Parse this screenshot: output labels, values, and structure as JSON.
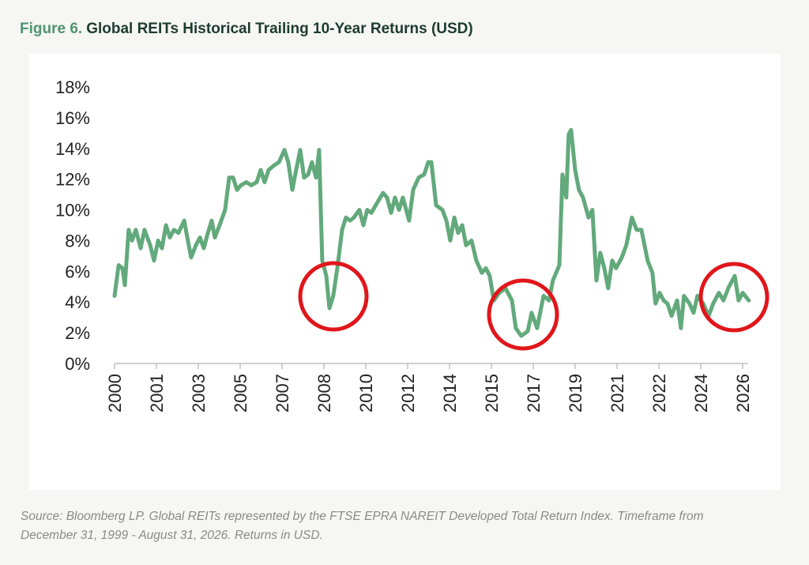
{
  "chart_data": {
    "type": "line",
    "title_label": "Figure 6.",
    "title": "Global REITs Historical Trailing 10-Year Returns (USD)",
    "source": "Source: Bloomberg LP. Global REITs represented by the FTSE EPRA NAREIT Developed Total Return Index. Timeframe from December 31, 1999 - August 31, 2026. Returns in USD.",
    "color": "#62a97b",
    "x": [
      2000.0,
      2000.17,
      2000.33,
      2000.43,
      2000.59,
      2000.73,
      2000.89,
      2001.09,
      2001.25,
      2001.49,
      2001.65,
      2001.82,
      2001.98,
      2002.15,
      2002.31,
      2002.48,
      2002.67,
      2002.91,
      2003.04,
      2003.2,
      2003.4,
      2003.57,
      2003.73,
      2003.9,
      2004.06,
      2004.19,
      2004.39,
      2004.62,
      2004.79,
      2004.95,
      2005.12,
      2005.28,
      2005.51,
      2005.71,
      2005.94,
      2006.11,
      2006.27,
      2006.44,
      2006.67,
      2006.87,
      2007.1,
      2007.26,
      2007.43,
      2007.59,
      2007.76,
      2007.92,
      2008.09,
      2008.25,
      2008.42,
      2008.55,
      2008.68,
      2008.85,
      2008.98,
      2009.14,
      2009.31,
      2009.51,
      2009.67,
      2009.84,
      2010.0,
      2010.23,
      2010.4,
      2010.56,
      2010.73,
      2010.99,
      2011.22,
      2011.39,
      2011.56,
      2011.72,
      2011.89,
      2012.05,
      2012.31,
      2012.48,
      2012.71,
      2012.94,
      2013.11,
      2013.24,
      2013.44,
      2013.7,
      2013.87,
      2014.03,
      2014.2,
      2014.36,
      2014.53,
      2014.69,
      2014.92,
      2015.12,
      2015.35,
      2015.52,
      2015.68,
      2015.85,
      2016.08,
      2016.34,
      2016.61,
      2016.77,
      2017.0,
      2017.27,
      2017.43,
      2017.66,
      2017.93,
      2018.16,
      2018.32,
      2018.59,
      2018.72,
      2018.88,
      2018.98,
      2019.08,
      2019.25,
      2019.41,
      2019.58,
      2019.81,
      2019.97,
      2020.14,
      2020.3,
      2020.47,
      2020.63,
      2020.8,
      2020.96,
      2021.2,
      2021.39,
      2021.62,
      2021.82,
      2022.02,
      2022.28,
      2022.48,
      2022.61,
      2022.78,
      2022.95,
      2023.11,
      2023.28,
      2023.51,
      2023.67,
      2023.8,
      2024.03,
      2024.2,
      2024.36,
      2024.6,
      2024.83,
      2025.02,
      2025.26,
      2025.45,
      2025.65,
      2025.92,
      2026.08,
      2026.25,
      2026.51
    ],
    "values": [
      4.4,
      6.4,
      6.2,
      5.1,
      8.7,
      8.0,
      8.7,
      7.5,
      8.7,
      7.7,
      6.7,
      8.0,
      7.5,
      9.0,
      8.2,
      8.7,
      8.5,
      9.3,
      8.2,
      6.9,
      7.7,
      8.2,
      7.5,
      8.5,
      9.3,
      8.2,
      9.0,
      10.0,
      12.1,
      12.1,
      11.3,
      11.6,
      11.8,
      11.6,
      11.8,
      12.6,
      11.8,
      12.6,
      12.9,
      13.1,
      13.9,
      13.1,
      11.3,
      12.6,
      13.9,
      12.1,
      12.3,
      13.1,
      12.1,
      13.9,
      6.7,
      5.7,
      3.6,
      4.4,
      6.2,
      8.7,
      9.5,
      9.3,
      9.5,
      10.0,
      9.0,
      10.0,
      9.8,
      10.5,
      11.1,
      10.8,
      9.8,
      10.8,
      10.0,
      10.8,
      9.3,
      11.3,
      12.1,
      12.3,
      13.1,
      13.1,
      10.3,
      10.0,
      9.3,
      8.0,
      9.5,
      8.5,
      9.0,
      7.7,
      8.0,
      6.7,
      5.9,
      6.2,
      5.7,
      4.1,
      4.6,
      4.9,
      4.1,
      2.3,
      1.8,
      2.1,
      3.3,
      2.3,
      4.4,
      4.1,
      5.4,
      6.4,
      12.3,
      10.8,
      14.9,
      15.2,
      12.6,
      11.3,
      10.8,
      9.5,
      10.0,
      5.4,
      7.2,
      6.2,
      4.9,
      6.7,
      6.2,
      6.9,
      7.7,
      9.5,
      8.7,
      8.7,
      6.7,
      5.9,
      3.9,
      4.6,
      4.1,
      3.9,
      3.1,
      4.1,
      2.3,
      4.4,
      3.9,
      3.3,
      4.4,
      3.9,
      3.1,
      3.9,
      4.6,
      4.1,
      4.9,
      5.7,
      4.1,
      4.6,
      4.1
    ],
    "xlim": [
      2000,
      2026.67
    ],
    "xticks": [
      2000,
      {
        "value": 2001.75,
        "label": "2001"
      },
      {
        "value": 2003.5,
        "label": "2003"
      },
      {
        "value": 2005.25,
        "label": "2005"
      },
      2007,
      {
        "value": 2008.75,
        "label": "2008"
      },
      {
        "value": 2010.5,
        "label": "2010"
      },
      {
        "value": 2012.25,
        "label": "2012"
      },
      2014,
      {
        "value": 2015.75,
        "label": "2015"
      },
      {
        "value": 2017.5,
        "label": "2017"
      },
      {
        "value": 2019.25,
        "label": "2019"
      },
      2021,
      {
        "value": 2022.75,
        "label": "2022"
      },
      {
        "value": 2024.5,
        "label": "2024"
      },
      {
        "value": 2026.25,
        "label": "2026"
      }
    ],
    "ylim": [
      0,
      18
    ],
    "yticks": [
      {
        "value": 0,
        "label": "0%"
      },
      {
        "value": 2,
        "label": "2%"
      },
      {
        "value": 4,
        "label": "4%"
      },
      {
        "value": 6,
        "label": "6%"
      },
      {
        "value": 8,
        "label": "8%"
      },
      {
        "value": 10,
        "label": "10%"
      },
      {
        "value": 12,
        "label": "12%"
      },
      {
        "value": 14,
        "label": "14%"
      },
      {
        "value": 16,
        "label": "16%"
      },
      {
        "value": 18,
        "label": "18%"
      }
    ],
    "grid": false
  }
}
